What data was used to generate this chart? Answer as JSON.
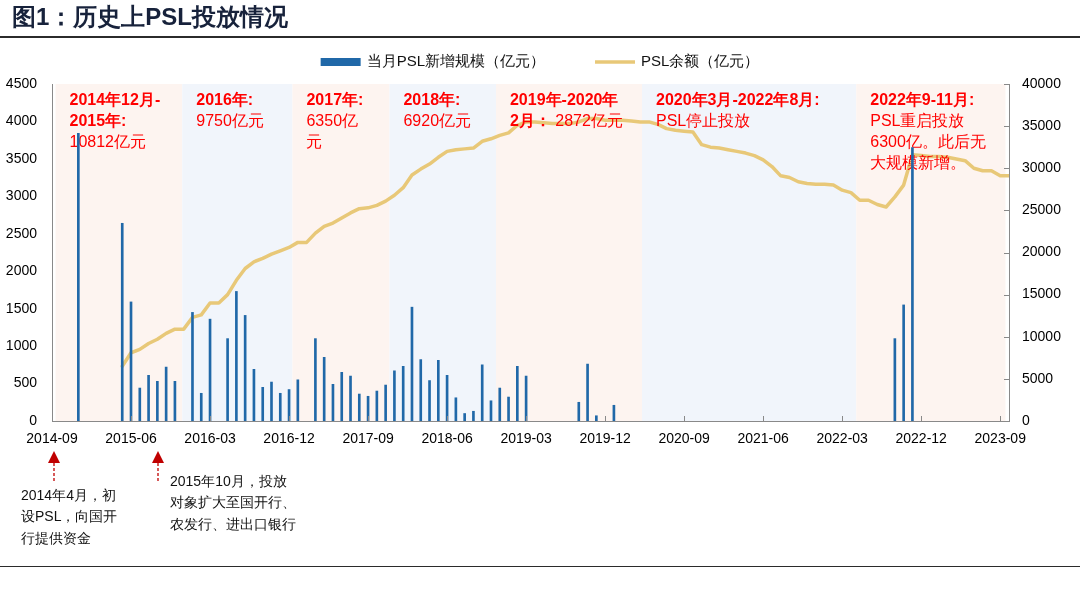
{
  "chart_data": {
    "type": "bar",
    "title": "图1：历史上PSL投放情况",
    "series": [
      {
        "name": "当月PSL新增规模（亿元）",
        "color": "#2068a8",
        "x": [
          "2014-12",
          "2015-05",
          "2015-06",
          "2015-07",
          "2015-08",
          "2015-09",
          "2015-10",
          "2015-11",
          "2016-01",
          "2016-02",
          "2016-03",
          "2016-05",
          "2016-06",
          "2016-07",
          "2016-08",
          "2016-09",
          "2016-10",
          "2016-11",
          "2016-12",
          "2017-01",
          "2017-03",
          "2017-04",
          "2017-05",
          "2017-06",
          "2017-07",
          "2017-08",
          "2017-09",
          "2017-10",
          "2017-11",
          "2017-12",
          "2018-01",
          "2018-02",
          "2018-03",
          "2018-04",
          "2018-05",
          "2018-06",
          "2018-07",
          "2018-08",
          "2018-09",
          "2018-10",
          "2018-11",
          "2018-12",
          "2019-01",
          "2019-02",
          "2019-03",
          "2019-09",
          "2019-10",
          "2019-11",
          "2020-01",
          "2022-09",
          "2022-10",
          "2022-11"
        ],
        "values": [
          3840,
          2640,
          1590,
          440,
          610,
          530,
          720,
          530,
          1450,
          370,
          1360,
          1100,
          1730,
          1410,
          690,
          450,
          520,
          370,
          420,
          550,
          1100,
          850,
          490,
          650,
          600,
          360,
          330,
          400,
          480,
          670,
          730,
          1520,
          820,
          540,
          810,
          610,
          310,
          100,
          130,
          750,
          270,
          440,
          320,
          730,
          600,
          250,
          760,
          70,
          210,
          1100,
          1550,
          3650
        ]
      },
      {
        "name": "PSL余额（亿元）",
        "type": "line",
        "axis": "y2",
        "color": "#e8c878",
        "x": [
          "2015-05",
          "2015-06",
          "2015-07",
          "2015-08",
          "2015-09",
          "2015-10",
          "2015-11",
          "2015-12",
          "2016-01",
          "2016-02",
          "2016-03",
          "2016-04",
          "2016-05",
          "2016-06",
          "2016-07",
          "2016-08",
          "2016-09",
          "2016-10",
          "2016-11",
          "2016-12",
          "2017-01",
          "2017-02",
          "2017-03",
          "2017-04",
          "2017-05",
          "2017-06",
          "2017-07",
          "2017-08",
          "2017-09",
          "2017-10",
          "2017-11",
          "2017-12",
          "2018-01",
          "2018-02",
          "2018-03",
          "2018-04",
          "2018-05",
          "2018-06",
          "2018-07",
          "2018-08",
          "2018-09",
          "2018-10",
          "2018-11",
          "2018-12",
          "2019-01",
          "2019-02",
          "2019-03",
          "2019-04",
          "2019-05",
          "2019-06",
          "2019-07",
          "2019-08",
          "2019-09",
          "2019-10",
          "2019-11",
          "2019-12",
          "2020-01",
          "2020-02",
          "2020-03",
          "2020-04",
          "2020-05",
          "2020-06",
          "2020-07",
          "2020-08",
          "2020-09",
          "2020-10",
          "2020-11",
          "2020-12",
          "2021-01",
          "2021-02",
          "2021-03",
          "2021-04",
          "2021-05",
          "2021-06",
          "2021-07",
          "2021-08",
          "2021-09",
          "2021-10",
          "2021-11",
          "2021-12",
          "2022-01",
          "2022-02",
          "2022-03",
          "2022-04",
          "2022-05",
          "2022-06",
          "2022-07",
          "2022-08",
          "2022-09",
          "2022-10",
          "2022-11",
          "2022-12",
          "2023-01",
          "2023-02",
          "2023-03",
          "2023-04",
          "2023-05",
          "2023-06",
          "2023-07",
          "2023-08",
          "2023-09",
          "2023-10"
        ],
        "values": [
          6500,
          8100,
          8500,
          9200,
          9700,
          10400,
          10900,
          10900,
          12300,
          12600,
          14000,
          14000,
          15000,
          16700,
          18100,
          18900,
          19300,
          19800,
          20200,
          20600,
          21200,
          21200,
          22300,
          23100,
          23500,
          24100,
          24700,
          25200,
          25300,
          25600,
          26100,
          26800,
          27700,
          29200,
          29900,
          30500,
          31300,
          32000,
          32200,
          32300,
          32400,
          33200,
          33500,
          33900,
          34200,
          35100,
          35500,
          35500,
          35400,
          35300,
          35300,
          35300,
          35500,
          35900,
          35900,
          35700,
          35700,
          35700,
          35600,
          35500,
          35500,
          35200,
          34700,
          34500,
          34400,
          34300,
          32800,
          32500,
          32400,
          32200,
          32000,
          31800,
          31500,
          31000,
          30200,
          29100,
          28900,
          28400,
          28200,
          28100,
          28100,
          28000,
          27400,
          27100,
          26200,
          26200,
          25700,
          25400,
          26600,
          28000,
          31600,
          31500,
          31400,
          31400,
          31300,
          31100,
          30900,
          30000,
          29700,
          29700,
          29100,
          29100
        ]
      }
    ],
    "xlim": [
      "2014-09",
      "2023-10"
    ],
    "xticks": [
      "2014-09",
      "2015-06",
      "2016-03",
      "2016-12",
      "2017-09",
      "2018-06",
      "2019-03",
      "2019-12",
      "2020-09",
      "2021-06",
      "2022-03",
      "2022-12",
      "2023-09"
    ],
    "ylim": [
      0,
      4500
    ],
    "yticks": [
      0,
      500,
      1000,
      1500,
      2000,
      2500,
      3000,
      3500,
      4000,
      4500
    ],
    "y2lim": [
      0,
      40000
    ],
    "y2ticks": [
      0,
      5000,
      10000,
      15000,
      20000,
      25000,
      30000,
      35000,
      40000
    ],
    "legend": "top",
    "bands": [
      {
        "axis": "x",
        "from": "2014-09-13",
        "to": "2015-11-26",
        "color": "#fdf4f0",
        "label": "2014年12月-2015年:10812亿元"
      },
      {
        "axis": "x",
        "from": "2015-11-26",
        "to": "2016-12-13",
        "color": "#f1f5fb",
        "label": "2016年:9750亿元"
      },
      {
        "axis": "x",
        "from": "2016-12-13",
        "to": "2017-11-14",
        "color": "#fdf4f0",
        "label": "2017年:6350亿元"
      },
      {
        "axis": "x",
        "from": "2017-11-14",
        "to": "2018-11-18",
        "color": "#f1f5fb",
        "label": "2018年:6920亿元"
      },
      {
        "axis": "x",
        "from": "2018-11-18",
        "to": "2020-04-07",
        "color": "#fdf4f0",
        "label": "2019年-2020年2月： 2872亿元"
      },
      {
        "axis": "x",
        "from": "2020-04-07",
        "to": "2022-04-19",
        "color": "#f1f5fb",
        "label": "2020年3月-2022年8月:PSL停止投放"
      },
      {
        "axis": "x",
        "from": "2022-04-19",
        "to": "2023-09-19",
        "color": "#fdf4f0",
        "label": "2022年9-11月:PSL重启投放6300亿。此后无大规模新增。"
      }
    ],
    "annotations": [
      "2014年4月，初设PSL，向国开行提供资金",
      "2015年10月，投放对象扩大至国开行、农发行、进出口银行"
    ]
  }
}
